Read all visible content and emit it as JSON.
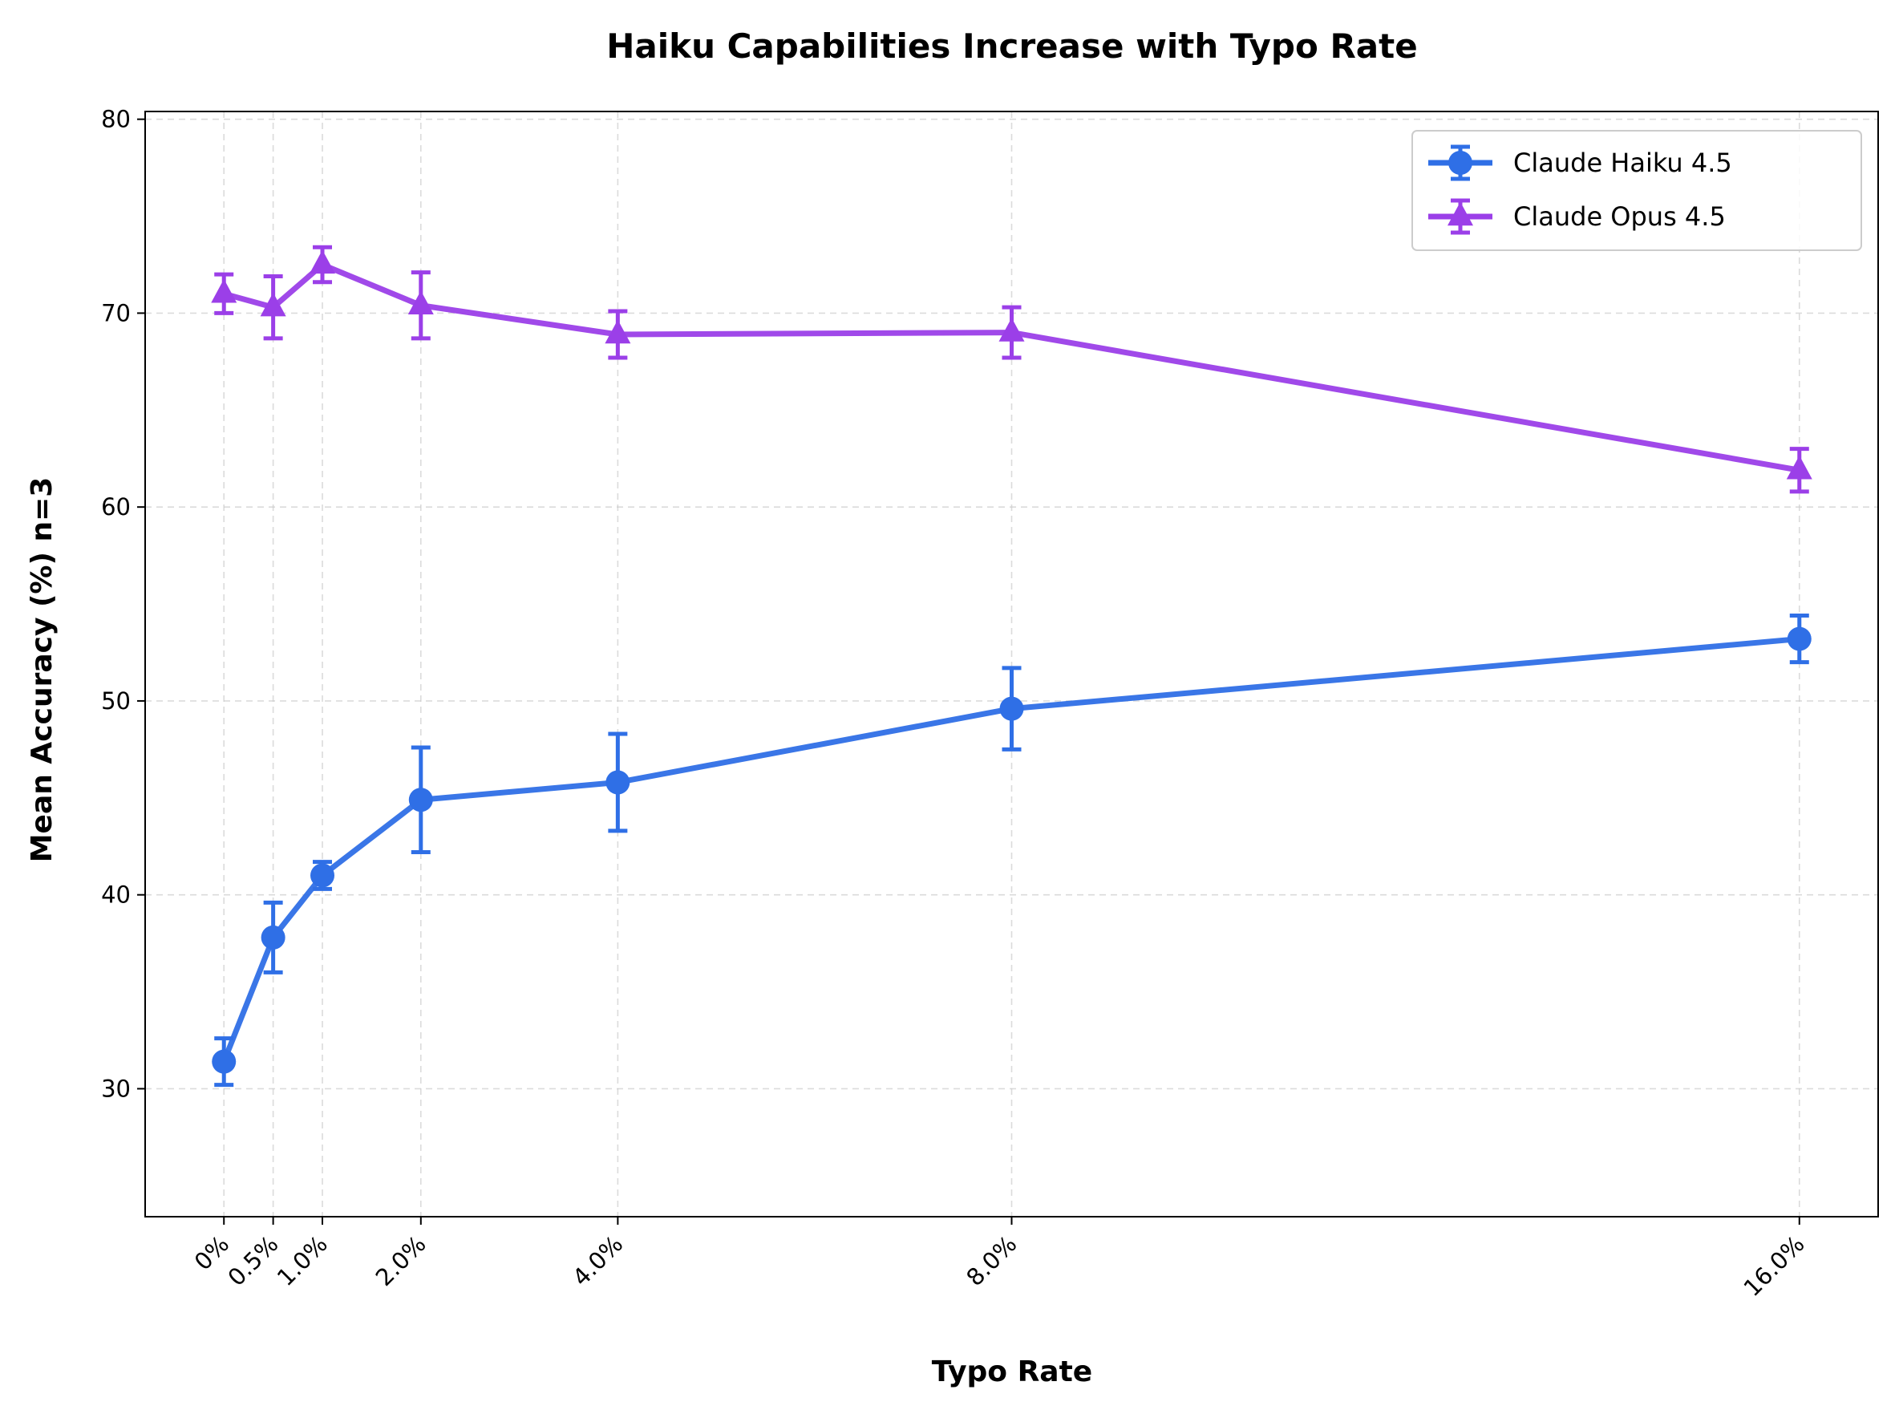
{
  "chart_data": {
    "type": "line",
    "title": "Haiku Capabilities Increase with Typo Rate",
    "xlabel": "Typo Rate",
    "ylabel": "Mean Accuracy (%) n=3",
    "x": [
      0,
      0.5,
      1.0,
      2.0,
      4.0,
      8.0,
      16.0
    ],
    "x_tick_labels": [
      "0%",
      "0.5%",
      "1.0%",
      "2.0%",
      "4.0%",
      "8.0%",
      "16.0%"
    ],
    "xlim": [
      -0.8,
      16.8
    ],
    "ylim": [
      23.4,
      80.4
    ],
    "y_ticks": [
      30,
      40,
      50,
      60,
      70,
      80
    ],
    "grid": true,
    "legend_position": "top-right",
    "series": [
      {
        "name": "Claude Haiku 4.5",
        "color": "#2f6fe6",
        "marker": "circle",
        "values": [
          31.4,
          37.8,
          41.0,
          44.9,
          45.8,
          49.6,
          53.2
        ],
        "errors": [
          1.2,
          1.8,
          0.7,
          2.7,
          2.5,
          2.1,
          1.2
        ]
      },
      {
        "name": "Claude Opus 4.5",
        "color": "#9b3fe8",
        "marker": "triangle",
        "values": [
          71.0,
          70.3,
          72.5,
          70.4,
          68.9,
          69.0,
          61.9
        ],
        "errors": [
          1.0,
          1.6,
          0.9,
          1.7,
          1.2,
          1.3,
          1.1
        ]
      }
    ]
  }
}
